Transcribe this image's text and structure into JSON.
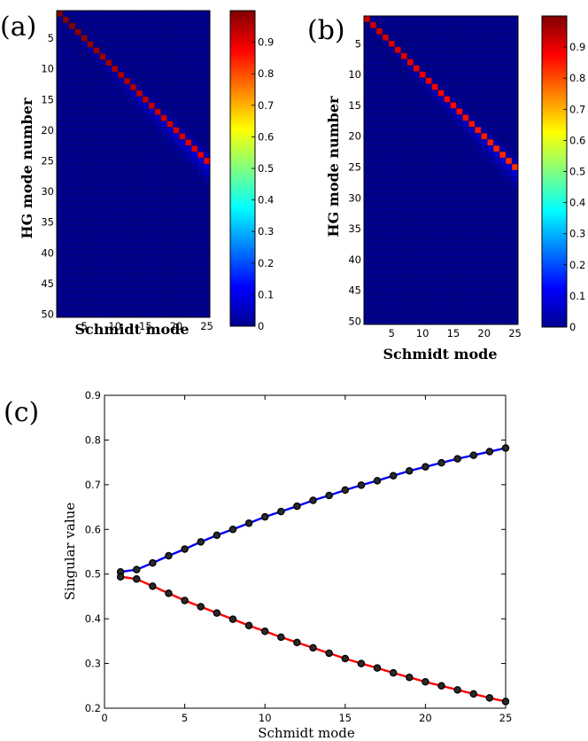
{
  "chart_data": [
    {
      "panel": "(a)",
      "type": "heatmap",
      "xlabel": "Schmidt mode",
      "ylabel": "HG mode number",
      "x_range": [
        1,
        25
      ],
      "y_range": [
        1,
        50
      ],
      "x_ticks": [
        5,
        10,
        15,
        20,
        25
      ],
      "y_ticks": [
        5,
        10,
        15,
        20,
        25,
        30,
        35,
        40,
        45,
        50
      ],
      "colorbar_ticks": [
        0,
        0.1,
        0.2,
        0.3,
        0.4,
        0.5,
        0.6,
        0.7,
        0.8,
        0.9
      ],
      "colorbar_range": [
        0,
        1
      ],
      "colormap": "jet",
      "pattern": "diagonal band: HG mode ≈ Schmidt mode index, values near 1 on the diagonal fading to 0"
    },
    {
      "panel": "(b)",
      "type": "heatmap",
      "xlabel": "Schmidt mode",
      "ylabel": "HG mode number",
      "x_range": [
        1,
        25
      ],
      "y_range": [
        1,
        50
      ],
      "x_ticks": [
        5,
        10,
        15,
        20,
        25
      ],
      "y_ticks": [
        5,
        10,
        15,
        20,
        25,
        30,
        35,
        40,
        45,
        50
      ],
      "colorbar_ticks": [
        0,
        0.1,
        0.2,
        0.3,
        0.4,
        0.5,
        0.6,
        0.7,
        0.8,
        0.9
      ],
      "colorbar_range": [
        0,
        1
      ],
      "colormap": "jet",
      "pattern": "diagonal band: HG mode ≈ Schmidt mode index, values near 1 on the diagonal fading to 0"
    },
    {
      "panel": "(c)",
      "type": "line",
      "xlabel": "Schmidt mode",
      "ylabel": "Singular value",
      "xlim": [
        0,
        25
      ],
      "ylim": [
        0.2,
        0.9
      ],
      "x_ticks": [
        0,
        5,
        10,
        15,
        20,
        25
      ],
      "y_ticks": [
        0.2,
        0.3,
        0.4,
        0.5,
        0.6,
        0.7,
        0.8,
        0.9
      ],
      "x": [
        1,
        2,
        3,
        4,
        5,
        6,
        7,
        8,
        9,
        10,
        11,
        12,
        13,
        14,
        15,
        16,
        17,
        18,
        19,
        20,
        21,
        22,
        23,
        24,
        25
      ],
      "series": [
        {
          "color": "#0000ff",
          "values": [
            0.505,
            0.51,
            0.525,
            0.541,
            0.556,
            0.572,
            0.587,
            0.6,
            0.614,
            0.628,
            0.64,
            0.652,
            0.665,
            0.676,
            0.688,
            0.699,
            0.709,
            0.72,
            0.731,
            0.74,
            0.749,
            0.758,
            0.766,
            0.774,
            0.782
          ]
        },
        {
          "color": "#ff0000",
          "values": [
            0.494,
            0.489,
            0.473,
            0.457,
            0.441,
            0.427,
            0.413,
            0.399,
            0.385,
            0.372,
            0.359,
            0.347,
            0.335,
            0.323,
            0.311,
            0.3,
            0.29,
            0.279,
            0.269,
            0.259,
            0.25,
            0.241,
            0.232,
            0.223,
            0.215
          ]
        }
      ],
      "marker": "circle",
      "marker_color": "#000000",
      "grid": false
    }
  ]
}
